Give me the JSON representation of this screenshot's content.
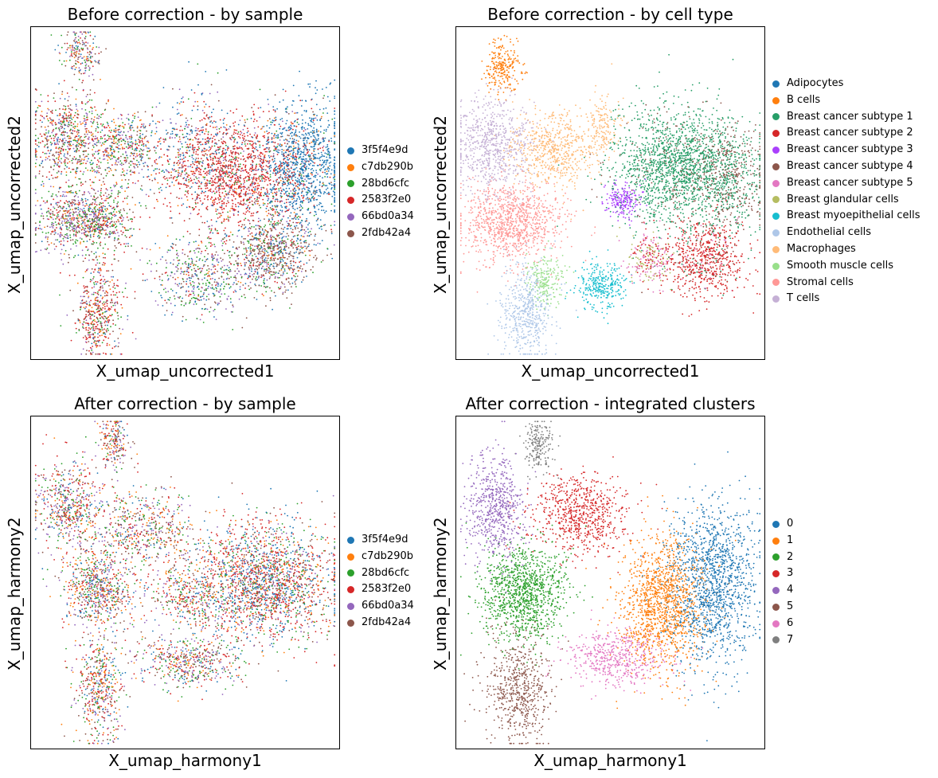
{
  "chart_data": [
    {
      "type": "scatter",
      "title": "Before correction - by sample",
      "xlabel": "X_umap_uncorrected1",
      "ylabel": "X_umap_uncorrected2",
      "legend_position": "right",
      "colors": [
        "#1f77b4",
        "#ff7f0e",
        "#2ca02c",
        "#d62728",
        "#9467bd",
        "#8c564b"
      ],
      "legend": [
        "3f5f4e9d",
        "c7db290b",
        "28bd6cfc",
        "2583f2e0",
        "66bd0a34",
        "2fdb42a4"
      ],
      "clusters": [
        {
          "x": 0.16,
          "y": 0.92,
          "sx": 0.03,
          "sy": 0.04,
          "n": 200,
          "mix": [
            0.1,
            0.12,
            0.15,
            0.18,
            0.2,
            0.25
          ]
        },
        {
          "x": 0.12,
          "y": 0.66,
          "sx": 0.06,
          "sy": 0.07,
          "n": 700,
          "mix": [
            0.1,
            0.12,
            0.18,
            0.22,
            0.18,
            0.2
          ]
        },
        {
          "x": 0.3,
          "y": 0.64,
          "sx": 0.06,
          "sy": 0.05,
          "n": 450,
          "mix": [
            0.12,
            0.12,
            0.2,
            0.18,
            0.22,
            0.16
          ]
        },
        {
          "x": 0.13,
          "y": 0.42,
          "sx": 0.06,
          "sy": 0.05,
          "n": 550,
          "mix": [
            0.08,
            0.08,
            0.2,
            0.16,
            0.3,
            0.18
          ]
        },
        {
          "x": 0.24,
          "y": 0.42,
          "sx": 0.05,
          "sy": 0.05,
          "n": 400,
          "mix": [
            0.06,
            0.08,
            0.26,
            0.22,
            0.18,
            0.2
          ]
        },
        {
          "x": 0.52,
          "y": 0.62,
          "sx": 0.08,
          "sy": 0.09,
          "n": 350,
          "mix": [
            0.4,
            0.06,
            0.14,
            0.12,
            0.14,
            0.14
          ]
        },
        {
          "x": 0.66,
          "y": 0.56,
          "sx": 0.11,
          "sy": 0.08,
          "n": 1500,
          "mix": [
            0.06,
            0.05,
            0.06,
            0.72,
            0.05,
            0.06
          ]
        },
        {
          "x": 0.88,
          "y": 0.58,
          "sx": 0.07,
          "sy": 0.1,
          "n": 1200,
          "mix": [
            0.82,
            0.03,
            0.04,
            0.04,
            0.03,
            0.04
          ]
        },
        {
          "x": 0.78,
          "y": 0.32,
          "sx": 0.07,
          "sy": 0.06,
          "n": 800,
          "mix": [
            0.15,
            0.04,
            0.12,
            0.08,
            0.1,
            0.51
          ]
        },
        {
          "x": 0.55,
          "y": 0.25,
          "sx": 0.08,
          "sy": 0.06,
          "n": 500,
          "mix": [
            0.15,
            0.05,
            0.3,
            0.1,
            0.22,
            0.18
          ]
        },
        {
          "x": 0.22,
          "y": 0.14,
          "sx": 0.04,
          "sy": 0.07,
          "n": 500,
          "mix": [
            0.06,
            0.1,
            0.12,
            0.42,
            0.12,
            0.18
          ]
        }
      ]
    },
    {
      "type": "scatter",
      "title": "Before correction - by cell type",
      "xlabel": "X_umap_uncorrected1",
      "ylabel": "X_umap_uncorrected2",
      "legend_position": "right",
      "colors": [
        "#1f77b4",
        "#ff7f0e",
        "#279e68",
        "#d62728",
        "#aa40fc",
        "#8c564b",
        "#e377c2",
        "#b5bd61",
        "#17becf",
        "#aec7e8",
        "#ffbb78",
        "#98df8a",
        "#ff9896",
        "#c5b0d5"
      ],
      "legend": [
        "Adipocytes",
        "B cells",
        "Breast cancer subtype 1",
        "Breast cancer subtype 2",
        "Breast cancer subtype 3",
        "Breast cancer subtype 4",
        "Breast cancer subtype 5",
        "Breast glandular cells",
        "Breast myoepithelial cells",
        "Endothelial cells",
        "Macrophages",
        "Smooth muscle cells",
        "Stromal cells",
        "T cells"
      ],
      "clusters": [
        {
          "x": 0.15,
          "y": 0.88,
          "sx": 0.03,
          "sy": 0.04,
          "n": 250,
          "mix": [
            0,
            1,
            0,
            0,
            0,
            0,
            0,
            0,
            0,
            0,
            0,
            0,
            0,
            0
          ]
        },
        {
          "x": 0.12,
          "y": 0.64,
          "sx": 0.06,
          "sy": 0.07,
          "n": 700,
          "mix": [
            0,
            0,
            0,
            0,
            0,
            0,
            0,
            0,
            0,
            0,
            0,
            0,
            0,
            1
          ]
        },
        {
          "x": 0.32,
          "y": 0.63,
          "sx": 0.07,
          "sy": 0.06,
          "n": 600,
          "mix": [
            0,
            0,
            0,
            0,
            0,
            0,
            0,
            0,
            0,
            0,
            1,
            0,
            0,
            0
          ]
        },
        {
          "x": 0.48,
          "y": 0.7,
          "sx": 0.03,
          "sy": 0.05,
          "n": 150,
          "mix": [
            0,
            0,
            0,
            0,
            0,
            0,
            0,
            0,
            0,
            0,
            1,
            0,
            0,
            0
          ]
        },
        {
          "x": 0.54,
          "y": 0.48,
          "sx": 0.03,
          "sy": 0.025,
          "n": 200,
          "mix": [
            0,
            0,
            0,
            0,
            1,
            0,
            0,
            0,
            0,
            0,
            0,
            0,
            0,
            0
          ]
        },
        {
          "x": 0.71,
          "y": 0.58,
          "sx": 0.1,
          "sy": 0.09,
          "n": 1700,
          "mix": [
            0,
            0,
            0.9,
            0,
            0,
            0.1,
            0,
            0,
            0,
            0,
            0,
            0,
            0,
            0
          ]
        },
        {
          "x": 0.88,
          "y": 0.55,
          "sx": 0.06,
          "sy": 0.08,
          "n": 700,
          "mix": [
            0,
            0,
            0.5,
            0,
            0,
            0.5,
            0,
            0,
            0,
            0,
            0,
            0,
            0,
            0
          ]
        },
        {
          "x": 0.8,
          "y": 0.3,
          "sx": 0.07,
          "sy": 0.06,
          "n": 700,
          "mix": [
            0,
            0,
            0.05,
            0.85,
            0,
            0.05,
            0.05,
            0,
            0,
            0,
            0,
            0,
            0,
            0
          ]
        },
        {
          "x": 0.63,
          "y": 0.3,
          "sx": 0.04,
          "sy": 0.04,
          "n": 250,
          "mix": [
            0,
            0,
            0,
            0.2,
            0,
            0,
            0.4,
            0.4,
            0,
            0,
            0,
            0,
            0,
            0
          ]
        },
        {
          "x": 0.47,
          "y": 0.22,
          "sx": 0.04,
          "sy": 0.035,
          "n": 300,
          "mix": [
            0,
            0,
            0,
            0,
            0,
            0,
            0,
            0,
            1,
            0,
            0,
            0,
            0,
            0
          ]
        },
        {
          "x": 0.18,
          "y": 0.41,
          "sx": 0.08,
          "sy": 0.06,
          "n": 1000,
          "mix": [
            0,
            0,
            0,
            0,
            0,
            0,
            0,
            0,
            0,
            0,
            0,
            0,
            1,
            0
          ]
        },
        {
          "x": 0.29,
          "y": 0.24,
          "sx": 0.03,
          "sy": 0.04,
          "n": 200,
          "mix": [
            0,
            0,
            0,
            0,
            0,
            0,
            0,
            0,
            0,
            0,
            0,
            1,
            0,
            0
          ]
        },
        {
          "x": 0.23,
          "y": 0.14,
          "sx": 0.04,
          "sy": 0.07,
          "n": 500,
          "mix": [
            0,
            0,
            0,
            0,
            0,
            0,
            0,
            0,
            0,
            1,
            0,
            0,
            0,
            0
          ]
        }
      ]
    },
    {
      "type": "scatter",
      "title": "After correction - by sample",
      "xlabel": "X_umap_harmony1",
      "ylabel": "X_umap_harmony2",
      "legend_position": "right",
      "colors": [
        "#1f77b4",
        "#ff7f0e",
        "#2ca02c",
        "#d62728",
        "#9467bd",
        "#8c564b"
      ],
      "legend": [
        "3f5f4e9d",
        "c7db290b",
        "28bd6cfc",
        "2583f2e0",
        "66bd0a34",
        "2fdb42a4"
      ],
      "clusters": [
        {
          "x": 0.27,
          "y": 0.92,
          "sx": 0.025,
          "sy": 0.04,
          "n": 200,
          "mix": [
            0.12,
            0.14,
            0.16,
            0.2,
            0.18,
            0.2
          ]
        },
        {
          "x": 0.12,
          "y": 0.73,
          "sx": 0.06,
          "sy": 0.07,
          "n": 600,
          "mix": [
            0.12,
            0.14,
            0.16,
            0.22,
            0.18,
            0.18
          ]
        },
        {
          "x": 0.36,
          "y": 0.66,
          "sx": 0.08,
          "sy": 0.06,
          "n": 550,
          "mix": [
            0.12,
            0.14,
            0.16,
            0.22,
            0.18,
            0.18
          ]
        },
        {
          "x": 0.22,
          "y": 0.48,
          "sx": 0.06,
          "sy": 0.06,
          "n": 700,
          "mix": [
            0.12,
            0.14,
            0.16,
            0.22,
            0.18,
            0.18
          ]
        },
        {
          "x": 0.75,
          "y": 0.5,
          "sx": 0.12,
          "sy": 0.09,
          "n": 2200,
          "mix": [
            0.22,
            0.12,
            0.12,
            0.3,
            0.1,
            0.14
          ]
        },
        {
          "x": 0.5,
          "y": 0.46,
          "sx": 0.06,
          "sy": 0.05,
          "n": 300,
          "mix": [
            0.12,
            0.14,
            0.16,
            0.26,
            0.16,
            0.16
          ]
        },
        {
          "x": 0.52,
          "y": 0.26,
          "sx": 0.08,
          "sy": 0.04,
          "n": 500,
          "mix": [
            0.12,
            0.14,
            0.18,
            0.2,
            0.2,
            0.16
          ]
        },
        {
          "x": 0.22,
          "y": 0.18,
          "sx": 0.04,
          "sy": 0.08,
          "n": 500,
          "mix": [
            0.1,
            0.14,
            0.18,
            0.24,
            0.14,
            0.2
          ]
        }
      ]
    },
    {
      "type": "scatter",
      "title": "After correction - integrated clusters",
      "xlabel": "X_umap_harmony1",
      "ylabel": "X_umap_harmony2",
      "legend_position": "right",
      "colors": [
        "#1f77b4",
        "#ff7f0e",
        "#2ca02c",
        "#d62728",
        "#9467bd",
        "#8c564b",
        "#e377c2",
        "#7f7f7f"
      ],
      "legend": [
        "0",
        "1",
        "2",
        "3",
        "4",
        "5",
        "6",
        "7"
      ],
      "clusters": [
        {
          "x": 0.27,
          "y": 0.91,
          "sx": 0.025,
          "sy": 0.04,
          "n": 200,
          "mix": [
            0,
            0,
            0,
            0,
            0,
            0,
            0,
            1
          ]
        },
        {
          "x": 0.13,
          "y": 0.72,
          "sx": 0.05,
          "sy": 0.08,
          "n": 600,
          "mix": [
            0,
            0,
            0,
            0,
            1,
            0,
            0,
            0
          ]
        },
        {
          "x": 0.4,
          "y": 0.7,
          "sx": 0.08,
          "sy": 0.06,
          "n": 700,
          "mix": [
            0,
            0,
            0,
            1,
            0,
            0,
            0,
            0
          ]
        },
        {
          "x": 0.22,
          "y": 0.47,
          "sx": 0.07,
          "sy": 0.07,
          "n": 1100,
          "mix": [
            0,
            0,
            1,
            0,
            0,
            0,
            0,
            0
          ]
        },
        {
          "x": 0.83,
          "y": 0.5,
          "sx": 0.07,
          "sy": 0.12,
          "n": 1400,
          "mix": [
            1,
            0,
            0,
            0,
            0,
            0,
            0,
            0
          ]
        },
        {
          "x": 0.67,
          "y": 0.43,
          "sx": 0.07,
          "sy": 0.1,
          "n": 1300,
          "mix": [
            0,
            1,
            0,
            0,
            0,
            0,
            0,
            0
          ]
        },
        {
          "x": 0.52,
          "y": 0.27,
          "sx": 0.08,
          "sy": 0.04,
          "n": 500,
          "mix": [
            0,
            0,
            0,
            0,
            0,
            0,
            1,
            0
          ]
        },
        {
          "x": 0.2,
          "y": 0.18,
          "sx": 0.05,
          "sy": 0.08,
          "n": 600,
          "mix": [
            0,
            0,
            0,
            0,
            0,
            1,
            0,
            0
          ]
        }
      ]
    }
  ]
}
